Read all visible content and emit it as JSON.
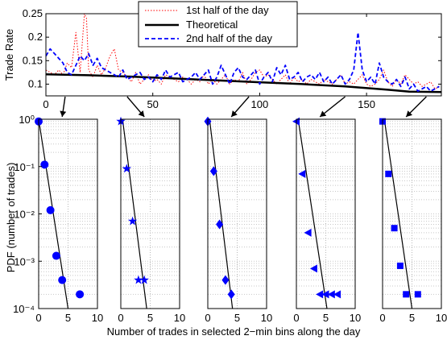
{
  "chart_data": [
    {
      "type": "line",
      "ylabel": "Trade Rate",
      "xlim": [
        0,
        185
      ],
      "ylim": [
        0.075,
        0.25
      ],
      "x_ticks": [
        0,
        50,
        100,
        150
      ],
      "y_ticks": [
        0.1,
        0.15,
        0.2,
        0.25
      ],
      "grid": false,
      "legend_position": "top-center",
      "series": [
        {
          "name": "1st half of the day",
          "style": "dotted",
          "color": "#ff0000",
          "x": [
            0,
            2,
            4,
            6,
            8,
            10,
            12,
            14,
            16,
            18,
            19,
            20,
            22,
            24,
            26,
            28,
            30,
            32,
            34,
            36,
            38,
            40,
            42,
            44,
            46,
            48,
            50,
            52,
            54,
            56,
            58,
            60,
            62,
            64,
            66,
            68,
            70,
            72,
            74,
            76,
            78,
            80,
            82,
            84,
            86,
            88,
            90,
            92,
            94,
            96,
            98,
            100,
            102,
            104,
            106,
            108,
            110,
            112,
            114,
            116,
            118,
            120,
            122,
            124,
            126,
            128,
            130,
            132,
            134,
            136,
            138,
            140,
            142,
            144,
            146,
            148,
            150,
            152,
            154,
            156,
            158,
            160,
            162,
            164,
            166,
            168,
            170,
            172,
            174,
            176,
            178,
            180,
            182,
            184
          ],
          "y": [
            0.13,
            0.125,
            0.12,
            0.13,
            0.12,
            0.145,
            0.135,
            0.21,
            0.125,
            0.25,
            0.24,
            0.13,
            0.115,
            0.14,
            0.12,
            0.135,
            0.16,
            0.175,
            0.13,
            0.125,
            0.115,
            0.105,
            0.125,
            0.1,
            0.11,
            0.12,
            0.105,
            0.11,
            0.1,
            0.12,
            0.115,
            0.11,
            0.105,
            0.115,
            0.11,
            0.1,
            0.11,
            0.105,
            0.12,
            0.1,
            0.11,
            0.1,
            0.11,
            0.12,
            0.1,
            0.11,
            0.105,
            0.125,
            0.1,
            0.11,
            0.125,
            0.13,
            0.115,
            0.12,
            0.11,
            0.1,
            0.11,
            0.12,
            0.1,
            0.115,
            0.105,
            0.11,
            0.1,
            0.11,
            0.105,
            0.1,
            0.11,
            0.105,
            0.1,
            0.11,
            0.12,
            0.1,
            0.105,
            0.1,
            0.11,
            0.12,
            0.1,
            0.095,
            0.1,
            0.11,
            0.13,
            0.105,
            0.095,
            0.11,
            0.1,
            0.12,
            0.11,
            0.1,
            0.105,
            0.095,
            0.1,
            0.105,
            0.09,
            0.095
          ]
        },
        {
          "name": "Theoretical",
          "style": "solid",
          "color": "#000000",
          "x": [
            0,
            20,
            40,
            60,
            80,
            100,
            120,
            140,
            160,
            170,
            185
          ],
          "y": [
            0.121,
            0.119,
            0.116,
            0.112,
            0.108,
            0.104,
            0.1,
            0.095,
            0.088,
            0.084,
            0.083
          ]
        },
        {
          "name": "2nd half of the day",
          "style": "dashed",
          "color": "#0000ff",
          "x": [
            0,
            2,
            4,
            6,
            8,
            10,
            12,
            14,
            16,
            18,
            20,
            22,
            24,
            26,
            28,
            30,
            32,
            34,
            36,
            38,
            40,
            42,
            44,
            46,
            48,
            50,
            52,
            54,
            56,
            58,
            60,
            62,
            64,
            66,
            68,
            70,
            72,
            74,
            76,
            78,
            80,
            82,
            84,
            86,
            88,
            90,
            92,
            94,
            96,
            98,
            100,
            102,
            104,
            106,
            108,
            110,
            112,
            114,
            116,
            118,
            120,
            122,
            124,
            126,
            128,
            130,
            132,
            134,
            136,
            138,
            140,
            142,
            144,
            146,
            148,
            150,
            152,
            154,
            156,
            158,
            160,
            162,
            164,
            166,
            168,
            170,
            172,
            174,
            176,
            178,
            180,
            182,
            184
          ],
          "y": [
            0.16,
            0.175,
            0.165,
            0.155,
            0.145,
            0.125,
            0.12,
            0.14,
            0.16,
            0.15,
            0.165,
            0.14,
            0.155,
            0.135,
            0.13,
            0.125,
            0.12,
            0.115,
            0.13,
            0.11,
            0.115,
            0.12,
            0.125,
            0.11,
            0.115,
            0.105,
            0.12,
            0.11,
            0.13,
            0.115,
            0.12,
            0.125,
            0.105,
            0.11,
            0.115,
            0.125,
            0.11,
            0.12,
            0.13,
            0.1,
            0.115,
            0.14,
            0.12,
            0.1,
            0.125,
            0.135,
            0.115,
            0.11,
            0.12,
            0.13,
            0.1,
            0.115,
            0.125,
            0.105,
            0.135,
            0.12,
            0.14,
            0.11,
            0.115,
            0.125,
            0.105,
            0.115,
            0.12,
            0.11,
            0.125,
            0.105,
            0.115,
            0.1,
            0.11,
            0.12,
            0.1,
            0.11,
            0.13,
            0.21,
            0.13,
            0.105,
            0.115,
            0.1,
            0.145,
            0.115,
            0.105,
            0.1,
            0.11,
            0.095,
            0.115,
            0.09,
            0.1,
            0.085,
            0.09,
            0.095,
            0.085,
            0.09,
            0.095
          ]
        }
      ]
    },
    {
      "type": "scatter",
      "ylabel": "PDF (number of trades)",
      "xlabel": "Number of trades in selected 2−min bins along the day",
      "y_scale": "log",
      "ylim": [
        0.0001,
        1
      ],
      "xlim": [
        0,
        10
      ],
      "x_ticks": [
        0,
        5,
        10
      ],
      "y_tick_labels": [
        "10⁰",
        "10⁻¹",
        "10⁻²",
        "10⁻³",
        "10⁻⁴"
      ],
      "grid": true,
      "color": "#0000ff",
      "panels": [
        {
          "marker": "circle",
          "source_x": 9,
          "points": {
            "x": [
              0,
              1,
              2,
              3,
              4,
              7
            ],
            "y": [
              0.9,
              0.11,
              0.012,
              0.0013,
              0.0004,
              0.0002
            ]
          },
          "fit": {
            "x": [
              0,
              5
            ],
            "y": [
              1,
              0.0001
            ]
          }
        },
        {
          "marker": "star",
          "source_x": 38,
          "points": {
            "x": [
              0,
              1,
              2,
              3,
              4
            ],
            "y": [
              0.9,
              0.09,
              0.007,
              0.0004,
              0.0004
            ]
          },
          "fit": {
            "x": [
              0.3,
              4.4
            ],
            "y": [
              1,
              0.0001
            ]
          }
        },
        {
          "marker": "diamond",
          "source_x": 95,
          "points": {
            "x": [
              0,
              1,
              2,
              3,
              4
            ],
            "y": [
              0.9,
              0.08,
              0.006,
              0.0004,
              0.0002
            ]
          },
          "fit": {
            "x": [
              0.3,
              4.2
            ],
            "y": [
              1,
              0.0001
            ]
          }
        },
        {
          "marker": "triangle-left",
          "source_x": 140,
          "points": {
            "x": [
              0,
              1,
              2,
              3,
              4,
              5,
              6,
              7
            ],
            "y": [
              0.9,
              0.07,
              0.004,
              0.0007,
              0.0002,
              0.0002,
              0.0002,
              0.0002
            ]
          },
          "fit": {
            "x": [
              0.3,
              5.2
            ],
            "y": [
              1,
              0.0001
            ]
          }
        },
        {
          "marker": "square",
          "source_x": 178,
          "points": {
            "x": [
              0,
              1,
              2,
              3,
              4,
              6
            ],
            "y": [
              0.9,
              0.07,
              0.005,
              0.0008,
              0.0002,
              0.0002
            ]
          },
          "fit": {
            "x": [
              0.3,
              5
            ],
            "y": [
              1,
              0.0001
            ]
          }
        }
      ]
    }
  ]
}
